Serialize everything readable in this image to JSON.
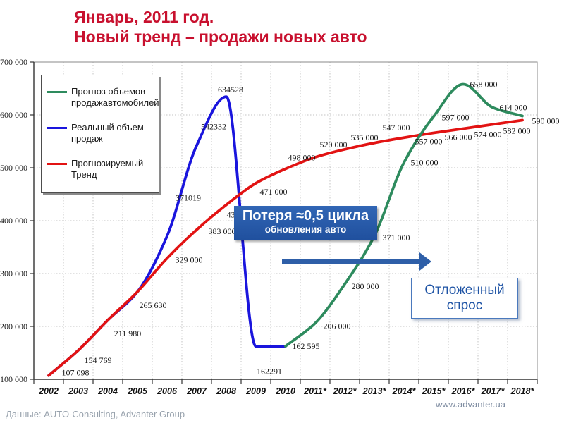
{
  "header": {
    "line1": "Январь, 2011 год.",
    "line2": "Новый тренд – продажи новых авто",
    "color": "#c8102e"
  },
  "footer": {
    "source": "Данные: AUTO-Consulting, Advanter Group",
    "website": "www.advanter.ua"
  },
  "annotations": {
    "loss_box": {
      "line1": "Потеря ≈0,5 цикла",
      "line2": "обновления авто",
      "bg_color": "#2a5caa",
      "text_color": "#ffffff"
    },
    "demand_box": {
      "line1": "Отложенный",
      "line2": "спрос",
      "text_color": "#1f54a5",
      "border_color": "#4a79bd"
    },
    "arrow": {
      "name": "right-arrow",
      "color": "#2e5fa8"
    }
  },
  "chart_data": {
    "type": "line",
    "title": "",
    "xlabel": "",
    "ylabel": "",
    "grid": true,
    "legend_position": "top-left",
    "ylim": [
      100000,
      700000
    ],
    "y_tick_step": 100000,
    "y_ticks": [
      "700 000",
      "600 000",
      "500 000",
      "400 000",
      "300 000",
      "200 000",
      "100 000"
    ],
    "x_categories": [
      "2002",
      "2003",
      "2004",
      "2005",
      "2006",
      "2007",
      "2008",
      "2009",
      "2010",
      "2011*",
      "2012*",
      "2013*",
      "2014*",
      "2015*",
      "2016*",
      "2017*",
      "2018*"
    ],
    "series": [
      {
        "name": "Прогноз объемов продажавтомобилей",
        "color": "#2e8b5e",
        "points": [
          {
            "x": "2010",
            "v": 162595,
            "label": "162 595"
          },
          {
            "x": "2011*",
            "v": 206000,
            "label": "206 000"
          },
          {
            "x": "2012*",
            "v": 280000,
            "label": "280 000"
          },
          {
            "x": "2013*",
            "v": 371000,
            "label": "371 000"
          },
          {
            "x": "2014*",
            "v": 510000,
            "label": "510 000"
          },
          {
            "x": "2015*",
            "v": 597000,
            "label": "597 000"
          },
          {
            "x": "2016*",
            "v": 658000,
            "label": "658 000"
          },
          {
            "x": "2017*",
            "v": 614000,
            "label": "614 000"
          },
          {
            "x": "2018*",
            "v": 598000,
            "label": ""
          }
        ]
      },
      {
        "name": "Реальный объем продаж",
        "color": "#1a15dd",
        "points": [
          {
            "x": "2002",
            "v": 107098,
            "label": "107 098"
          },
          {
            "x": "2003",
            "v": 154769,
            "label": "154 769"
          },
          {
            "x": "2004",
            "v": 211980,
            "label": "211 980"
          },
          {
            "x": "2005",
            "v": 265630,
            "label": "265 630"
          },
          {
            "x": "2006",
            "v": 371019,
            "label": "371019"
          },
          {
            "x": "2007",
            "v": 542332,
            "label": "542332"
          },
          {
            "x": "2008",
            "v": 634528,
            "label": "634528"
          },
          {
            "x": "2009",
            "v": 162291,
            "label": "162291"
          },
          {
            "x": "2010",
            "v": 162595,
            "label": ""
          }
        ]
      },
      {
        "name": "Прогнозируемый Тренд",
        "color": "#e21313",
        "points": [
          {
            "x": "2002",
            "v": 107098,
            "label": ""
          },
          {
            "x": "2003",
            "v": 154769,
            "label": ""
          },
          {
            "x": "2004",
            "v": 211980,
            "label": ""
          },
          {
            "x": "2005",
            "v": 265630,
            "label": ""
          },
          {
            "x": "2006",
            "v": 329000,
            "label": "329 000"
          },
          {
            "x": "2007",
            "v": 383000,
            "label": "383 000"
          },
          {
            "x": "2008",
            "v": 430000,
            "label": "430 000"
          },
          {
            "x": "2009",
            "v": 471000,
            "label": "471 000"
          },
          {
            "x": "2010",
            "v": 498000,
            "label": "498 000"
          },
          {
            "x": "2011*",
            "v": 520000,
            "label": "520 000"
          },
          {
            "x": "2012*",
            "v": 535000,
            "label": "535 000"
          },
          {
            "x": "2013*",
            "v": 547000,
            "label": "547 000"
          },
          {
            "x": "2014*",
            "v": 557000,
            "label": "557 000"
          },
          {
            "x": "2015*",
            "v": 566000,
            "label": "566 000"
          },
          {
            "x": "2016*",
            "v": 574000,
            "label": "574 000"
          },
          {
            "x": "2017*",
            "v": 582000,
            "label": "582 000"
          },
          {
            "x": "2018*",
            "v": 590000,
            "label": "590 000"
          }
        ]
      }
    ]
  }
}
